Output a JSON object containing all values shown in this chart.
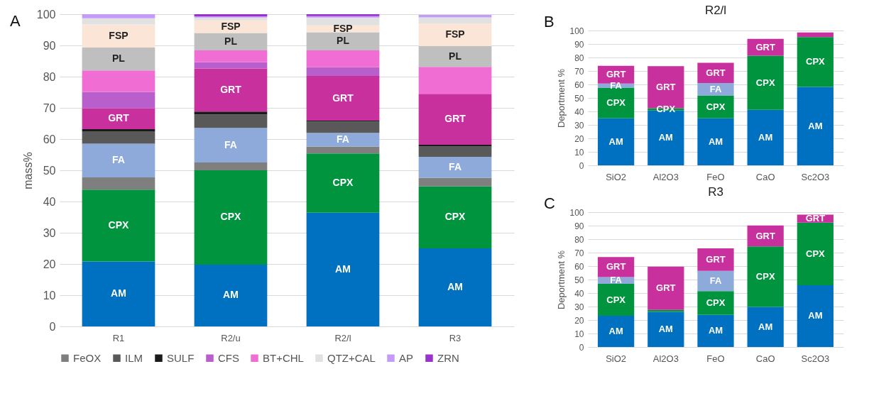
{
  "chart_data": [
    {
      "type": "bar",
      "stacked": true,
      "ylabel": "mass%",
      "annotations": [
        "A"
      ],
      "categories": [
        "R1",
        "R2/u",
        "R2/l",
        "R3"
      ],
      "ylim": [
        0,
        100
      ],
      "yticks": [
        0,
        10,
        20,
        30,
        40,
        50,
        60,
        70,
        80,
        90,
        100
      ],
      "grid": "y",
      "legend": "bottom",
      "series": [
        {
          "color": "#0070c0",
          "values": [
            20.8,
            19.8,
            36.4,
            25.0
          ],
          "value_labels": [
            "AM",
            "AM",
            "AM",
            "AM"
          ]
        },
        {
          "color": "#00943e",
          "values": [
            23.0,
            30.2,
            19.0,
            19.9
          ],
          "value_labels": [
            "CPX",
            "CPX",
            "CPX",
            "CPX"
          ]
        },
        {
          "name": "FeOX",
          "color": "#7f7f7f",
          "values": [
            3.9,
            2.5,
            2.2,
            2.7
          ]
        },
        {
          "color": "#8eaadb",
          "values": [
            10.8,
            11.1,
            4.4,
            6.7
          ],
          "value_labels": [
            "FA",
            "FA",
            "FA",
            "FA"
          ]
        },
        {
          "name": "ILM",
          "color": "#595959",
          "values": [
            4.0,
            4.3,
            3.6,
            3.3
          ]
        },
        {
          "name": "SULF",
          "color": "#1a1a1a",
          "values": [
            0.7,
            0.9,
            0.3,
            0.6
          ]
        },
        {
          "color": "#c8309e",
          "values": [
            6.7,
            13.8,
            14.3,
            16.3
          ],
          "value_labels": [
            "GRT",
            "GRT",
            "GRT",
            "GRT"
          ]
        },
        {
          "name": "CFS",
          "color": "#b85fcc",
          "values": [
            5.2,
            2.0,
            2.8,
            null
          ]
        },
        {
          "name": "BT+CHL",
          "color": "#f06ed4",
          "values": [
            6.9,
            3.8,
            5.4,
            8.6
          ]
        },
        {
          "color": "#bfbfbf",
          "values": [
            7.3,
            5.6,
            5.8,
            6.7
          ],
          "value_labels": [
            "PL",
            "PL",
            "PL",
            "PL"
          ]
        },
        {
          "color": "#fbe5d6",
          "values": [
            7.4,
            4.0,
            2.2,
            7.2
          ],
          "value_labels": [
            "FSP",
            "FSP",
            "FSP",
            "FSP"
          ]
        },
        {
          "name": "QTZ+CAL",
          "color": "#e1e1e1",
          "values": [
            2.0,
            0.9,
            2.5,
            2.0
          ]
        },
        {
          "name": "AP",
          "color": "#c49bf7",
          "values": [
            1.3,
            0.4,
            0.5,
            0.8
          ]
        },
        {
          "name": "ZRN",
          "color": "#9933cc",
          "values": [
            0,
            0.7,
            0.6,
            null
          ]
        }
      ]
    },
    {
      "type": "bar",
      "stacked": true,
      "title": "R2/l",
      "ylabel": "Deportment %",
      "annotations": [
        "B"
      ],
      "categories": [
        "SiO2",
        "Al2O3",
        "FeO",
        "CaO",
        "Sc2O3"
      ],
      "ylim": [
        0,
        100
      ],
      "yticks": [
        0,
        10,
        20,
        30,
        40,
        50,
        60,
        70,
        80,
        90,
        100
      ],
      "grid": "y",
      "series": [
        {
          "color": "#0070c0",
          "values": [
            34.9,
            40.7,
            34.9,
            41.2,
            58.1
          ],
          "value_labels": [
            "AM",
            "AM",
            "AM",
            "AM",
            "AM"
          ]
        },
        {
          "color": "#00943e",
          "values": [
            22.7,
            1.7,
            16.9,
            40.1,
            37.0
          ],
          "value_labels": [
            "CPX",
            "CPX",
            "CPX",
            "CPX",
            "CPX"
          ]
        },
        {
          "color": "#8eaadb",
          "values": [
            3.1,
            null,
            9.2,
            null,
            null
          ],
          "value_labels": [
            "FA",
            null,
            "FA",
            null,
            null
          ]
        },
        {
          "color": "#c8309e",
          "values": [
            13.1,
            31.1,
            15.0,
            12.5,
            3.4
          ],
          "value_labels": [
            "GRT",
            "GRT",
            "GRT",
            "GRT",
            null
          ]
        }
      ]
    },
    {
      "type": "bar",
      "stacked": true,
      "title": "R3",
      "ylabel": "Deportment %",
      "annotations": [
        "C"
      ],
      "categories": [
        "SiO2",
        "Al2O3",
        "FeO",
        "CaO",
        "Sc2O3"
      ],
      "ylim": [
        0,
        100
      ],
      "yticks": [
        0,
        10,
        20,
        30,
        40,
        50,
        60,
        70,
        80,
        90,
        100
      ],
      "grid": "y",
      "series": [
        {
          "color": "#0070c0",
          "values": [
            23.1,
            26.0,
            23.8,
            29.7,
            45.8
          ],
          "value_labels": [
            "AM",
            "AM",
            "AM",
            "AM",
            "AM"
          ]
        },
        {
          "color": "#00943e",
          "values": [
            23.8,
            1.5,
            17.6,
            44.9,
            46.5
          ],
          "value_labels": [
            "CPX",
            null,
            "CPX",
            "CPX",
            "CPX"
          ]
        },
        {
          "color": "#8eaadb",
          "values": [
            5.0,
            null,
            15.0,
            null,
            null
          ],
          "value_labels": [
            "FA",
            null,
            "FA",
            null,
            null
          ]
        },
        {
          "color": "#c8309e",
          "values": [
            14.8,
            32.1,
            16.8,
            15.5,
            5.8
          ],
          "value_labels": [
            "GRT",
            "GRT",
            "GRT",
            "GRT",
            "GRT"
          ]
        }
      ]
    }
  ]
}
